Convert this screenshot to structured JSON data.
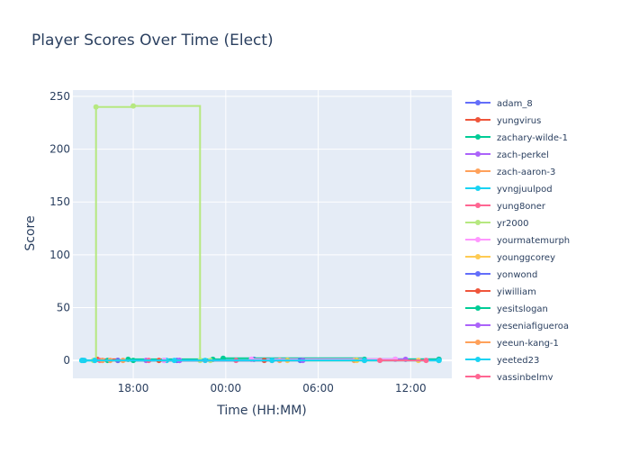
{
  "chart_data": {
    "type": "line",
    "title": "Player Scores Over Time (Elect)",
    "xlabel": "Time (HH:MM)",
    "ylabel": "Score",
    "x_is_time": true,
    "xlim": [
      "2024-01-01 14:05",
      "2024-01-02 14:40"
    ],
    "ylim": [
      -17,
      256
    ],
    "x_ticks": [
      {
        "value": "2024-01-01 18:00",
        "label": "18:00"
      },
      {
        "value": "2024-01-02 00:00",
        "label": "00:00"
      },
      {
        "value": "2024-01-02 06:00",
        "label": "06:00"
      },
      {
        "value": "2024-01-02 12:00",
        "label": "12:00"
      }
    ],
    "y_ticks": [
      0,
      50,
      100,
      150,
      200,
      250
    ],
    "grid": true,
    "line_shape": "hv",
    "legend_position": "right",
    "series": [
      {
        "name": "adam_8",
        "color": "#636efa",
        "points": [
          [
            "2024-01-01 14:45",
            0
          ],
          [
            "2024-01-01 16:00",
            0
          ],
          [
            "2024-01-01 20:00",
            0
          ],
          [
            "2024-01-02 01:50",
            1
          ],
          [
            "2024-01-02 11:00",
            1
          ],
          [
            "2024-01-02 13:50",
            1
          ]
        ]
      },
      {
        "name": "yungvirus",
        "color": "#ef553b",
        "points": [
          [
            "2024-01-01 15:40",
            1
          ],
          [
            "2024-01-01 17:00",
            0
          ],
          [
            "2024-01-02 03:00",
            0
          ]
        ]
      },
      {
        "name": "zachary-wilde-1",
        "color": "#00cc96",
        "points": [
          [
            "2024-01-01 16:20",
            0
          ],
          [
            "2024-01-01 17:40",
            1
          ],
          [
            "2024-01-01 23:10",
            1
          ],
          [
            "2024-01-01 23:50",
            2
          ],
          [
            "2024-01-02 09:00",
            1
          ],
          [
            "2024-01-02 13:50",
            1
          ]
        ]
      },
      {
        "name": "zach-perkel",
        "color": "#ab63fa",
        "points": [
          [
            "2024-01-01 18:50",
            0
          ],
          [
            "2024-01-01 21:00",
            0
          ],
          [
            "2024-01-02 01:40",
            1
          ],
          [
            "2024-01-02 11:40",
            1
          ]
        ]
      },
      {
        "name": "zach-aaron-3",
        "color": "#ffa15a",
        "points": [
          [
            "2024-01-01 16:30",
            0
          ],
          [
            "2024-01-02 03:30",
            0
          ],
          [
            "2024-01-02 08:20",
            0
          ]
        ]
      },
      {
        "name": "yvngjuulpod",
        "color": "#19d3f3",
        "points": [
          [
            "2024-01-01 14:50",
            0
          ],
          [
            "2024-01-01 15:30",
            0
          ],
          [
            "2024-01-01 20:10",
            0
          ],
          [
            "2024-01-01 22:40",
            0
          ]
        ]
      },
      {
        "name": "yung8oner",
        "color": "#ff6692",
        "points": [
          [
            "2024-01-01 15:50",
            0
          ],
          [
            "2024-01-01 19:00",
            0
          ],
          [
            "2024-01-02 00:40",
            0
          ]
        ]
      },
      {
        "name": "yr2000",
        "color": "#b6e880",
        "points": [
          [
            "2024-01-01 15:25",
            0
          ],
          [
            "2024-01-01 15:35",
            240
          ],
          [
            "2024-01-01 18:00",
            241
          ],
          [
            "2024-01-01 22:20",
            0
          ],
          [
            "2024-01-01 23:00",
            0
          ]
        ]
      },
      {
        "name": "yourmatemurph",
        "color": "#ff97ff",
        "points": [
          [
            "2024-01-01 20:00",
            0
          ],
          [
            "2024-01-02 01:40",
            1
          ],
          [
            "2024-01-02 11:00",
            1
          ]
        ]
      },
      {
        "name": "younggcorey",
        "color": "#fecb52",
        "points": [
          [
            "2024-01-02 04:00",
            0
          ],
          [
            "2024-01-02 08:30",
            0
          ],
          [
            "2024-01-02 12:30",
            0
          ]
        ]
      },
      {
        "name": "yonwond",
        "color": "#636efa",
        "points": [
          [
            "2024-01-01 17:00",
            0
          ],
          [
            "2024-01-01 20:50",
            0
          ],
          [
            "2024-01-02 04:50",
            0
          ]
        ]
      },
      {
        "name": "yiwilliam",
        "color": "#ef553b",
        "points": [
          [
            "2024-01-01 19:40",
            0
          ],
          [
            "2024-01-02 02:30",
            0
          ]
        ]
      },
      {
        "name": "yesitslogan",
        "color": "#00cc96",
        "points": [
          [
            "2024-01-01 14:40",
            0
          ],
          [
            "2024-01-01 18:00",
            0
          ],
          [
            "2024-01-02 09:00",
            0
          ],
          [
            "2024-01-02 13:50",
            0
          ]
        ]
      },
      {
        "name": "yeseniafigueroa",
        "color": "#ab63fa",
        "points": [
          [
            "2024-01-01 21:00",
            0
          ],
          [
            "2024-01-02 05:00",
            0
          ]
        ]
      },
      {
        "name": "yeeun-kang-1",
        "color": "#ffa15a",
        "points": [
          [
            "2024-01-01 16:00",
            0
          ],
          [
            "2024-01-01 17:20",
            0
          ]
        ]
      },
      {
        "name": "yeeted23",
        "color": "#19d3f3",
        "points": [
          [
            "2024-01-01 14:40",
            0
          ],
          [
            "2024-01-01 15:30",
            0
          ],
          [
            "2024-01-01 20:40",
            0
          ],
          [
            "2024-01-02 03:00",
            0
          ],
          [
            "2024-01-02 09:00",
            0
          ],
          [
            "2024-01-02 13:50",
            0
          ]
        ]
      },
      {
        "name": "yassinbelmy",
        "color": "#ff6692",
        "points": [
          [
            "2024-01-02 10:00",
            0
          ],
          [
            "2024-01-02 13:00",
            0
          ]
        ]
      }
    ]
  }
}
